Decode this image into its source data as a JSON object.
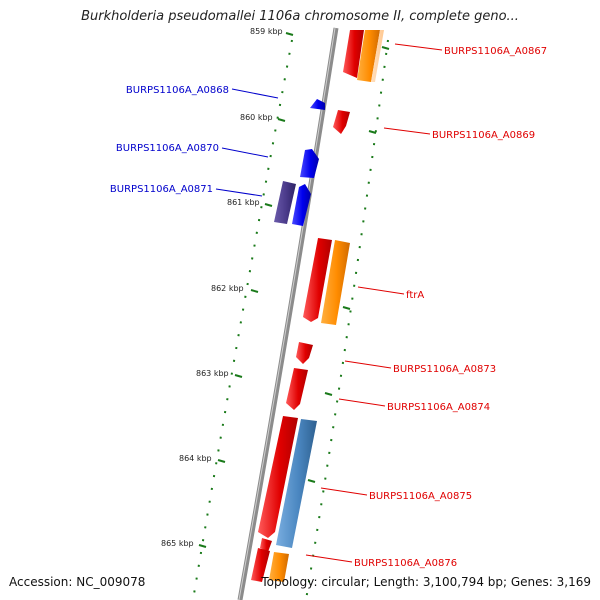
{
  "title": "Burkholderia pseudomallei 1106a chromosome II, complete geno...",
  "accession_label": "Accession: NC_009078",
  "summary_label": "Topology: circular; Length: 3,100,794 bp; Genes: 3,169",
  "colors": {
    "backbone": "#8c8c8c",
    "tick": "#1a7a1a",
    "forward_gene": "#e00000",
    "forward_cds": "#ff8c00",
    "reverse_gene": "#0000ee",
    "reverse_gene_dark": "#4a3a8a",
    "forward_blue": "#4a86c0",
    "label_forward": "#e00000",
    "label_reverse": "#0000cc"
  },
  "kbp_ticks": [
    {
      "label": "859 kbp"
    },
    {
      "label": "860 kbp"
    },
    {
      "label": "861 kbp"
    },
    {
      "label": "862 kbp"
    },
    {
      "label": "863 kbp"
    },
    {
      "label": "864 kbp"
    },
    {
      "label": "865 kbp"
    }
  ],
  "gene_labels": [
    {
      "text": "BURPS1106A_A0867",
      "strand": "forward"
    },
    {
      "text": "BURPS1106A_A0868",
      "strand": "reverse"
    },
    {
      "text": "BURPS1106A_A0869",
      "strand": "forward"
    },
    {
      "text": "BURPS1106A_A0870",
      "strand": "reverse"
    },
    {
      "text": "BURPS1106A_A0871",
      "strand": "reverse"
    },
    {
      "text": "ftrA",
      "strand": "forward"
    },
    {
      "text": "BURPS1106A_A0873",
      "strand": "forward"
    },
    {
      "text": "BURPS1106A_A0874",
      "strand": "forward"
    },
    {
      "text": "BURPS1106A_A0875",
      "strand": "forward"
    },
    {
      "text": "BURPS1106A_A0876",
      "strand": "forward"
    }
  ]
}
